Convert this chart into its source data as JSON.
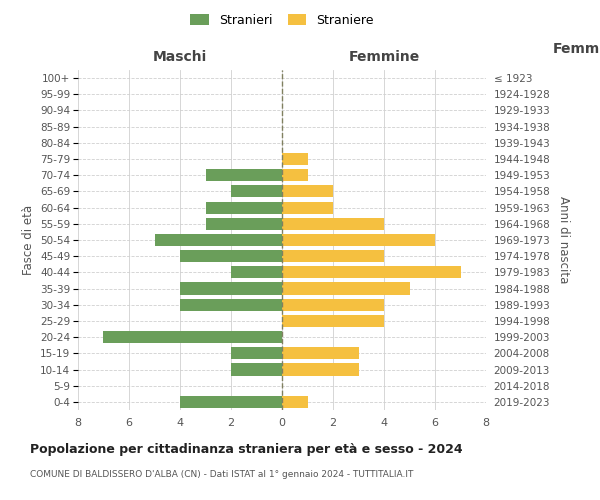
{
  "age_groups": [
    "0-4",
    "5-9",
    "10-14",
    "15-19",
    "20-24",
    "25-29",
    "30-34",
    "35-39",
    "40-44",
    "45-49",
    "50-54",
    "55-59",
    "60-64",
    "65-69",
    "70-74",
    "75-79",
    "80-84",
    "85-89",
    "90-94",
    "95-99",
    "100+"
  ],
  "birth_years": [
    "2019-2023",
    "2014-2018",
    "2009-2013",
    "2004-2008",
    "1999-2003",
    "1994-1998",
    "1989-1993",
    "1984-1988",
    "1979-1983",
    "1974-1978",
    "1969-1973",
    "1964-1968",
    "1959-1963",
    "1954-1958",
    "1949-1953",
    "1944-1948",
    "1939-1943",
    "1934-1938",
    "1929-1933",
    "1924-1928",
    "≤ 1923"
  ],
  "maschi": [
    4,
    0,
    2,
    2,
    7,
    0,
    4,
    4,
    2,
    4,
    5,
    3,
    3,
    2,
    3,
    0,
    0,
    0,
    0,
    0,
    0
  ],
  "femmine": [
    1,
    0,
    3,
    3,
    0,
    4,
    4,
    5,
    7,
    4,
    6,
    4,
    2,
    2,
    1,
    1,
    0,
    0,
    0,
    0,
    0
  ],
  "maschi_color": "#6a9e5a",
  "femmine_color": "#f5c040",
  "center_line_color": "#808060",
  "grid_color": "#d0d0d0",
  "title": "Popolazione per cittadinanza straniera per età e sesso - 2024",
  "subtitle": "COMUNE DI BALDISSERO D'ALBA (CN) - Dati ISTAT al 1° gennaio 2024 - TUTTITALIA.IT",
  "xlabel_left": "Maschi",
  "xlabel_right": "Femmine",
  "ylabel_left": "Fasce di età",
  "ylabel_right": "Anni di nascita",
  "legend_maschi": "Stranieri",
  "legend_femmine": "Straniere",
  "xlim": 8,
  "background_color": "#ffffff"
}
